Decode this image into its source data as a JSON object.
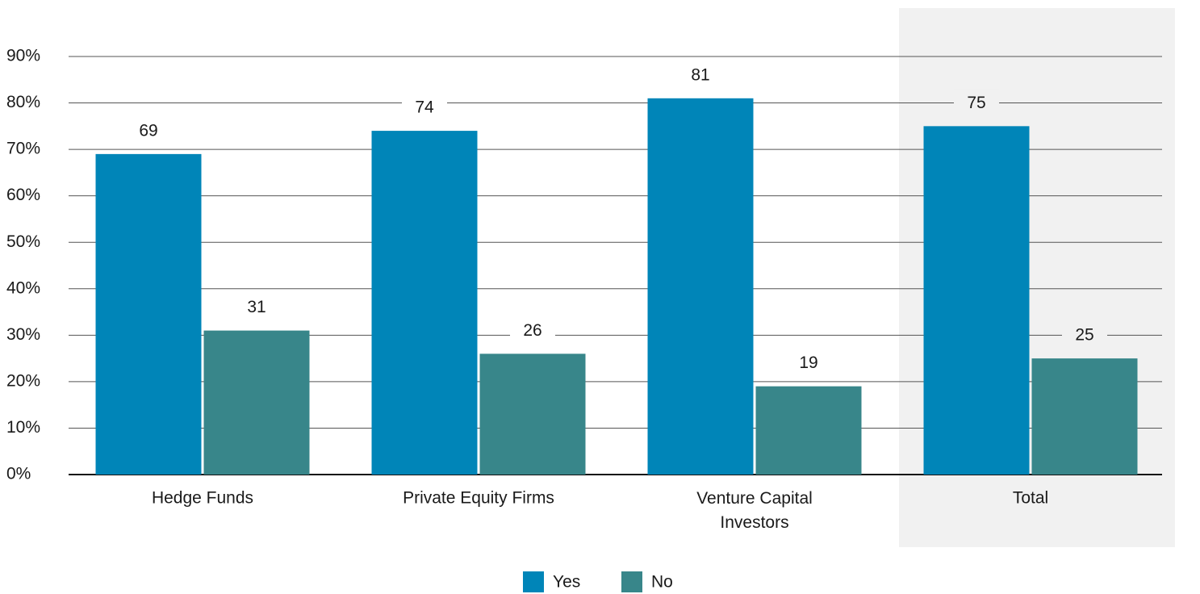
{
  "chart_data": {
    "type": "bar",
    "categories": [
      "Hedge Funds",
      "Private Equity Firms",
      "Venture Capital Investors",
      "Total"
    ],
    "series": [
      {
        "name": "Yes",
        "color": "#0085b8",
        "values": [
          69,
          74,
          81,
          75
        ]
      },
      {
        "name": "No",
        "color": "#38868a",
        "values": [
          31,
          26,
          19,
          25
        ]
      }
    ],
    "ylim": [
      0,
      90
    ],
    "yticks": [
      {
        "value": 0,
        "label": "0%"
      },
      {
        "value": 10,
        "label": "10%"
      },
      {
        "value": 20,
        "label": "20%"
      },
      {
        "value": 30,
        "label": "30%"
      },
      {
        "value": 40,
        "label": "40%"
      },
      {
        "value": 50,
        "label": "50%"
      },
      {
        "value": 60,
        "label": "60%"
      },
      {
        "value": 70,
        "label": "70%"
      },
      {
        "value": 80,
        "label": "80%"
      },
      {
        "value": 90,
        "label": "90%"
      }
    ],
    "grid": true,
    "legend": "bottom"
  }
}
